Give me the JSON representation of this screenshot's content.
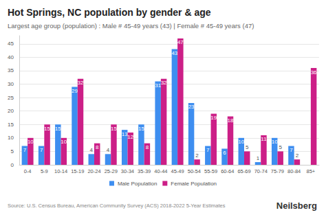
{
  "chart_data": {
    "type": "bar",
    "title": "Hot Springs, NC population by gender & age",
    "subtitle": "Largest age group (population) : Male # 45-49 years (43) | Female # 45-49 years (47)",
    "source": "Source: U.S. Census Bureau, American Community Survey (ACS) 2018-2022 5-Year Estimates",
    "brand": "Neilsberg",
    "categories": [
      "0-4",
      "5-9",
      "10-14",
      "15-19",
      "20-24",
      "25-29",
      "30-34",
      "35-39",
      "40-44",
      "45-49",
      "50-54",
      "55-59",
      "60-64",
      "65-69",
      "70-74",
      "75-79",
      "80-84",
      "85+"
    ],
    "series": [
      {
        "name": "Male Population",
        "color": "#3e8ef0",
        "values": [
          7,
          7,
          15,
          29,
          4,
          4,
          13,
          15,
          31,
          43,
          23,
          7,
          6,
          10,
          1,
          10,
          7,
          null
        ]
      },
      {
        "name": "Female Population",
        "color": "#cc1f87",
        "values": [
          10,
          15,
          10,
          32,
          8,
          15,
          12,
          8,
          32,
          47,
          2,
          19,
          18,
          5,
          11,
          5,
          2,
          36
        ]
      }
    ],
    "ylim": [
      0,
      48
    ],
    "yticks": [
      0,
      5,
      10,
      15,
      20,
      25,
      30,
      35,
      40,
      45
    ],
    "grid": true,
    "legend": "bottom",
    "data_labels": true
  }
}
